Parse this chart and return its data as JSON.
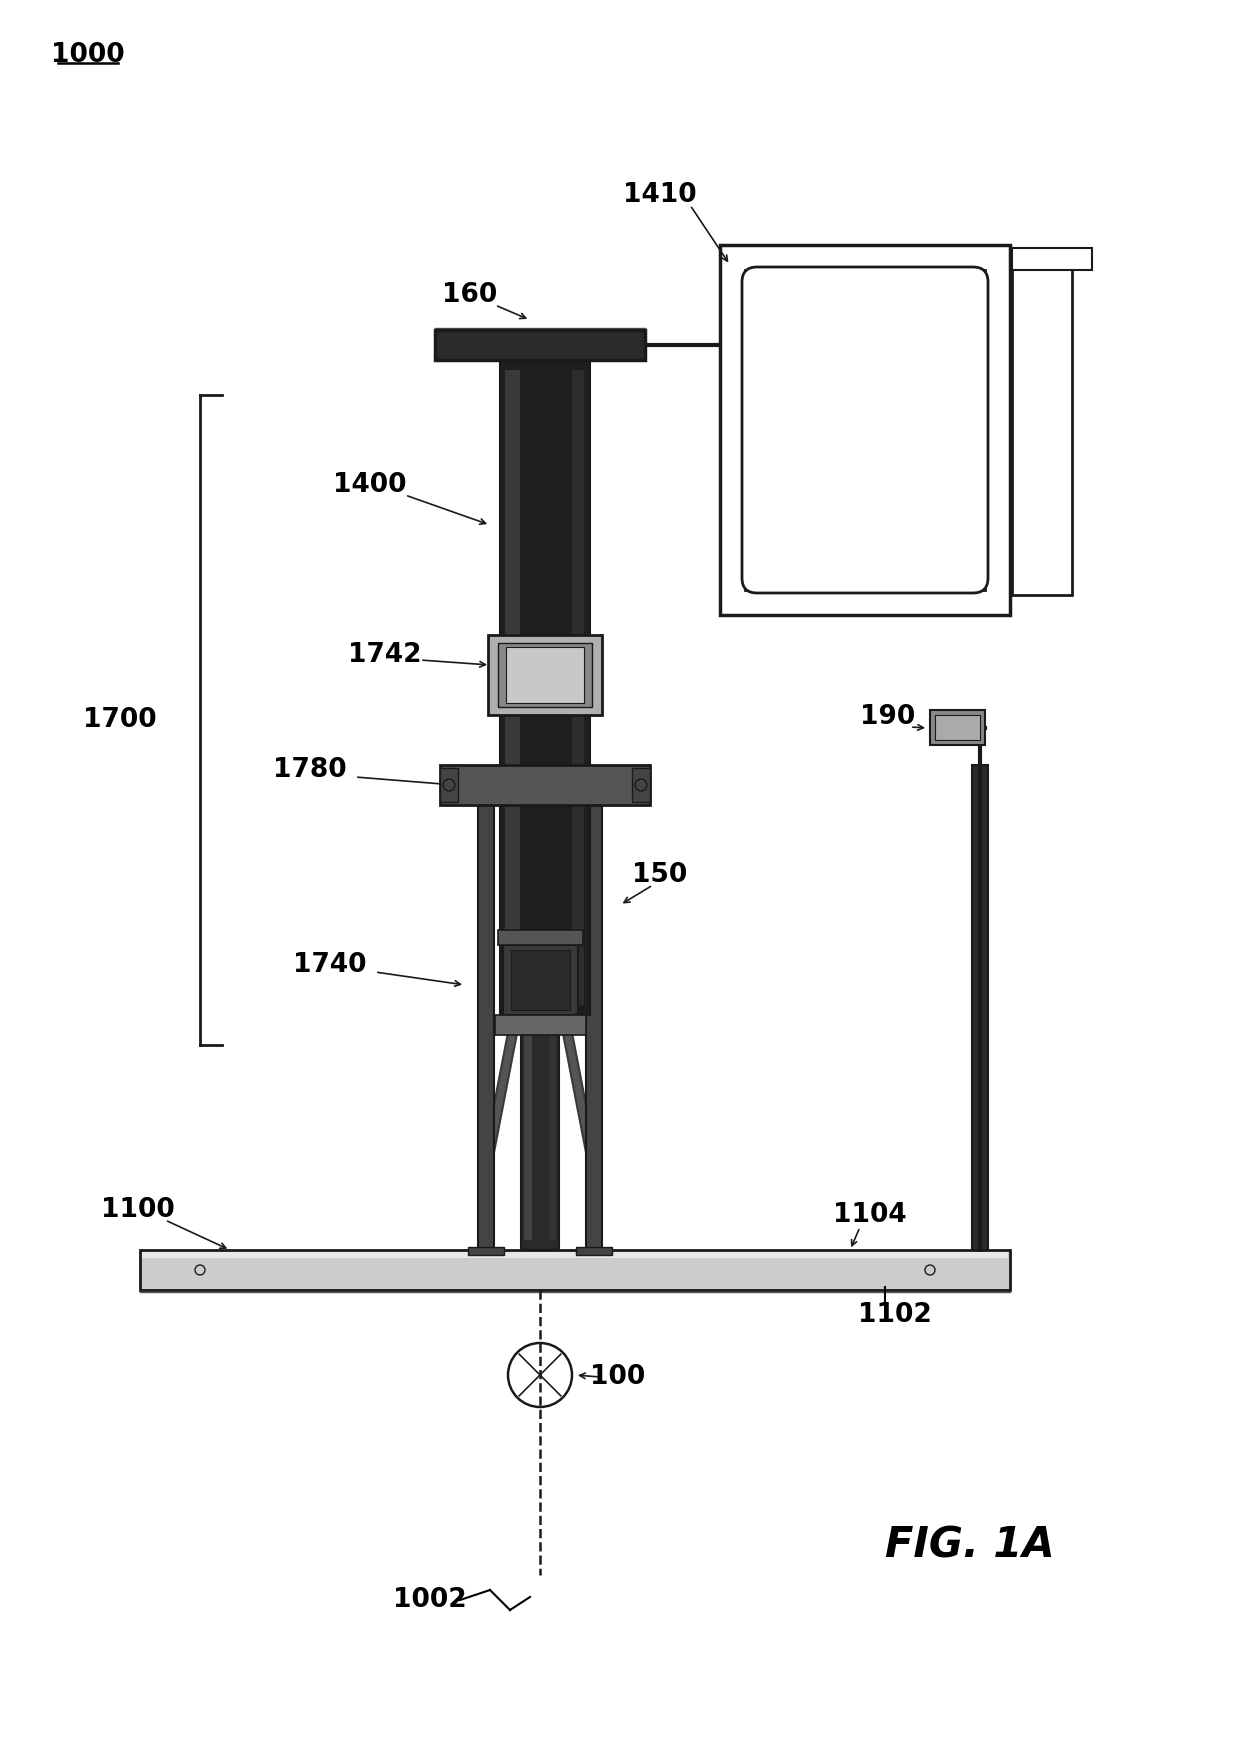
{
  "background_color": "#ffffff",
  "fig_label": "FIG. 1A",
  "gray_dark": "#1a1a1a",
  "gray_med": "#555555",
  "gray_light": "#aaaaaa",
  "gray_vlight": "#d0d0d0",
  "gray_fill_dark": "#2a2a2a",
  "gray_fill_mid": "#666666",
  "gray_fill_light": "#999999",
  "gray_fill_vlight": "#cccccc"
}
